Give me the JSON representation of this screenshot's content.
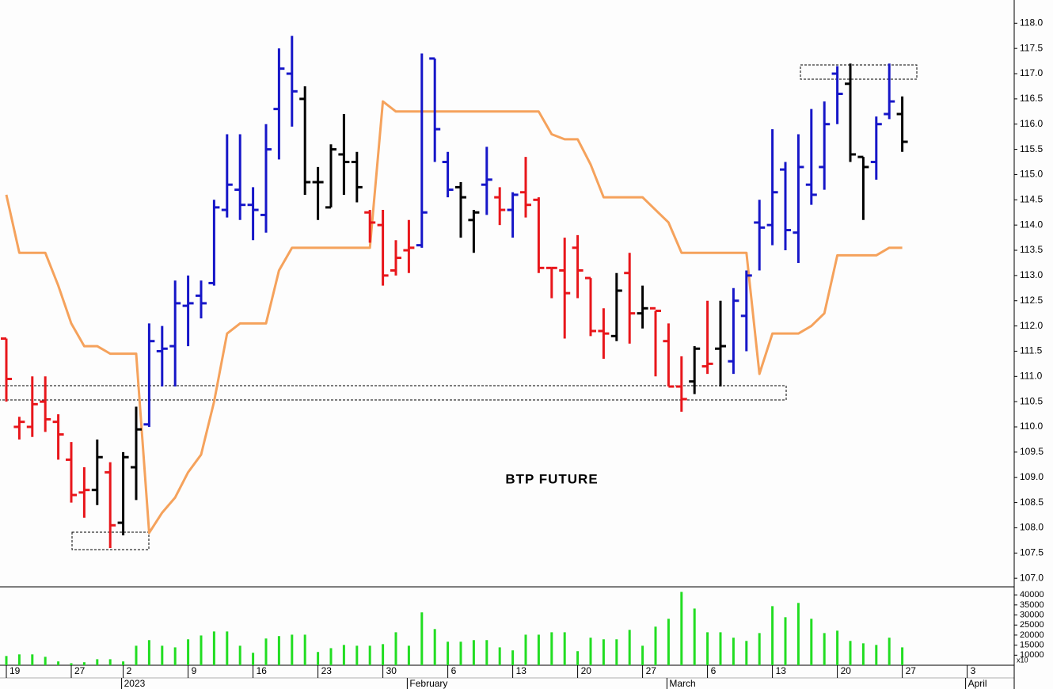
{
  "chart_data": [
    {
      "type": "ohlc",
      "title": "BTP FUTURE",
      "open": [
        111.75,
        110.0,
        110.0,
        110.5,
        110.1,
        109.35,
        108.7,
        108.75,
        109.1,
        108.1,
        109.2,
        110.05,
        111.5,
        111.6,
        112.4,
        112.6,
        112.85,
        114.3,
        114.7,
        114.4,
        114.2,
        116.3,
        117.0,
        116.5,
        114.85,
        114.35,
        115.4,
        115.25,
        114.25,
        114.0,
        113.1,
        113.5,
        113.6,
        117.3,
        115.25,
        114.75,
        114.1,
        114.8,
        114.55,
        114.3,
        114.65,
        114.5,
        113.15,
        113.1,
        113.55,
        112.95,
        111.9,
        111.8,
        113.05,
        112.25,
        112.35,
        111.7,
        110.8,
        110.9,
        111.2,
        111.55,
        111.3,
        112.2,
        114.05,
        114.0,
        115.1,
        113.85,
        114.8,
        115.15,
        117.0,
        116.8,
        115.35,
        115.25,
        116.2,
        116.2
      ],
      "high": [
        111.75,
        110.2,
        111.0,
        111.0,
        110.25,
        109.7,
        109.2,
        109.75,
        109.3,
        109.5,
        110.4,
        112.05,
        112.0,
        112.9,
        113.0,
        112.9,
        114.5,
        115.8,
        115.8,
        114.75,
        116.0,
        117.5,
        117.75,
        116.75,
        115.15,
        115.6,
        116.2,
        115.45,
        114.3,
        114.3,
        113.7,
        114.1,
        117.4,
        117.3,
        115.45,
        114.85,
        114.3,
        115.55,
        114.75,
        114.65,
        115.35,
        114.55,
        113.15,
        113.75,
        113.8,
        112.95,
        112.35,
        113.05,
        113.45,
        112.8,
        112.3,
        112.05,
        111.4,
        111.6,
        112.5,
        112.5,
        112.75,
        113.1,
        114.5,
        115.9,
        115.25,
        115.8,
        116.3,
        116.45,
        117.15,
        117.2,
        115.35,
        116.15,
        117.2,
        116.55
      ],
      "low": [
        110.5,
        109.75,
        109.8,
        109.9,
        109.35,
        108.5,
        108.2,
        108.45,
        107.6,
        107.85,
        108.55,
        110.0,
        110.8,
        110.8,
        111.6,
        112.15,
        112.8,
        114.15,
        114.1,
        113.7,
        113.85,
        115.3,
        115.95,
        114.6,
        114.1,
        114.35,
        114.6,
        114.45,
        113.65,
        112.8,
        113.0,
        113.05,
        113.55,
        115.25,
        114.55,
        113.75,
        113.45,
        114.2,
        114.0,
        113.75,
        114.15,
        113.05,
        112.55,
        111.75,
        112.55,
        111.8,
        111.35,
        111.7,
        111.65,
        111.95,
        111.0,
        110.8,
        110.3,
        110.65,
        111.05,
        110.8,
        111.05,
        111.5,
        113.1,
        113.6,
        113.5,
        113.25,
        114.4,
        114.7,
        116.0,
        115.25,
        114.1,
        114.9,
        116.1,
        115.45
      ],
      "close": [
        110.95,
        110.1,
        110.45,
        110.15,
        109.85,
        108.65,
        108.75,
        109.4,
        108.05,
        109.4,
        109.95,
        111.7,
        111.55,
        112.45,
        112.45,
        112.45,
        114.35,
        114.8,
        114.4,
        114.3,
        115.5,
        117.1,
        116.65,
        114.85,
        114.85,
        115.5,
        115.25,
        114.75,
        114.05,
        113.0,
        113.35,
        113.55,
        114.25,
        115.9,
        114.7,
        114.55,
        114.25,
        114.9,
        114.3,
        114.6,
        114.4,
        113.15,
        113.15,
        112.65,
        113.1,
        111.9,
        111.85,
        112.7,
        112.25,
        112.35,
        112.3,
        110.8,
        110.55,
        111.55,
        111.25,
        111.6,
        112.5,
        113.0,
        113.95,
        114.65,
        113.9,
        115.15,
        114.6,
        116.0,
        116.6,
        115.4,
        115.15,
        116.0,
        116.45,
        115.65
      ],
      "colors": [
        "#e8161b",
        "#e8161b",
        "#e8161b",
        "#e8161b",
        "#e8161b",
        "#e8161b",
        "#e8161b",
        "#000000",
        "#e8161b",
        "#000000",
        "#000000",
        "#1616c8",
        "#1616c8",
        "#1616c8",
        "#1616c8",
        "#1616c8",
        "#1616c8",
        "#1616c8",
        "#1616c8",
        "#1616c8",
        "#1616c8",
        "#1616c8",
        "#1616c8",
        "#000000",
        "#000000",
        "#000000",
        "#000000",
        "#000000",
        "#e8161b",
        "#e8161b",
        "#e8161b",
        "#e8161b",
        "#1616c8",
        "#1616c8",
        "#1616c8",
        "#000000",
        "#000000",
        "#1616c8",
        "#e8161b",
        "#1616c8",
        "#e8161b",
        "#e8161b",
        "#e8161b",
        "#e8161b",
        "#e8161b",
        "#e8161b",
        "#e8161b",
        "#000000",
        "#e8161b",
        "#000000",
        "#e8161b",
        "#e8161b",
        "#e8161b",
        "#000000",
        "#e8161b",
        "#000000",
        "#1616c8",
        "#1616c8",
        "#1616c8",
        "#1616c8",
        "#1616c8",
        "#1616c8",
        "#1616c8",
        "#1616c8",
        "#1616c8",
        "#000000",
        "#000000",
        "#1616c8",
        "#1616c8",
        "#000000"
      ],
      "line": {
        "color": "#f5a25c",
        "values": [
          114.6,
          113.45,
          113.45,
          113.45,
          112.8,
          112.05,
          111.6,
          111.6,
          111.45,
          111.45,
          111.45,
          107.9,
          108.3,
          108.6,
          109.1,
          109.45,
          110.5,
          111.85,
          112.05,
          112.05,
          112.05,
          113.1,
          113.55,
          113.55,
          113.55,
          113.55,
          113.55,
          113.55,
          113.55,
          116.45,
          116.25,
          116.25,
          116.25,
          116.25,
          116.25,
          116.25,
          116.25,
          116.25,
          116.25,
          116.25,
          116.25,
          116.25,
          115.8,
          115.7,
          115.7,
          115.2,
          114.55,
          114.55,
          114.55,
          114.55,
          114.3,
          114.05,
          113.45,
          113.45,
          113.45,
          113.45,
          113.45,
          113.45,
          111.05,
          111.85,
          111.85,
          111.85,
          112.0,
          112.25,
          113.4,
          113.4,
          113.4,
          113.4,
          113.55,
          113.55
        ]
      },
      "ylim": [
        106.83,
        118.46
      ],
      "yticks": [
        {
          "value": 107,
          "label": "107.0"
        },
        {
          "value": 107.5,
          "label": "107.5"
        },
        {
          "value": 108,
          "label": "108.0"
        },
        {
          "value": 108.5,
          "label": "108.5"
        },
        {
          "value": 109,
          "label": "109.0"
        },
        {
          "value": 109.5,
          "label": "109.5"
        },
        {
          "value": 110,
          "label": "110.0"
        },
        {
          "value": 110.5,
          "label": "110.5"
        },
        {
          "value": 111,
          "label": "111.0"
        },
        {
          "value": 111.5,
          "label": "111.5"
        },
        {
          "value": 112,
          "label": "112.0"
        },
        {
          "value": 112.5,
          "label": "112.5"
        },
        {
          "value": 113,
          "label": "113.0"
        },
        {
          "value": 113.5,
          "label": "113.5"
        },
        {
          "value": 114,
          "label": "114.0"
        },
        {
          "value": 114.5,
          "label": "114.5"
        },
        {
          "value": 115,
          "label": "115.0"
        },
        {
          "value": 115.5,
          "label": "115.5"
        },
        {
          "value": 116,
          "label": "116.0"
        },
        {
          "value": 116.5,
          "label": "116.5"
        },
        {
          "value": 117,
          "label": "117.0"
        },
        {
          "value": 117.5,
          "label": "117.5"
        },
        {
          "value": 118,
          "label": "118.0"
        }
      ]
    },
    {
      "type": "bar",
      "color": "#22dd22",
      "unit_label": "x10",
      "categories": [
        "19",
        null,
        null,
        null,
        null,
        "27",
        null,
        null,
        null,
        "2",
        null,
        null,
        null,
        null,
        "9",
        null,
        null,
        null,
        null,
        "16",
        null,
        null,
        null,
        null,
        "23",
        null,
        null,
        null,
        null,
        "30",
        null,
        null,
        null,
        null,
        "6",
        null,
        null,
        null,
        null,
        "13",
        null,
        null,
        null,
        null,
        "20",
        null,
        null,
        null,
        null,
        "27",
        null,
        null,
        null,
        null,
        "6",
        null,
        null,
        null,
        null,
        "13",
        null,
        null,
        null,
        null,
        "20",
        null,
        null,
        null,
        null,
        "27",
        null,
        null,
        null,
        null,
        "3",
        null,
        null,
        null
      ],
      "months": [
        null,
        null,
        null,
        null,
        null,
        null,
        null,
        null,
        null,
        "2023",
        null,
        null,
        null,
        null,
        null,
        null,
        null,
        null,
        null,
        null,
        null,
        null,
        null,
        null,
        null,
        null,
        null,
        null,
        null,
        null,
        null,
        "February",
        null,
        null,
        null,
        null,
        null,
        null,
        null,
        null,
        null,
        null,
        null,
        null,
        null,
        null,
        null,
        null,
        null,
        null,
        null,
        "March",
        null,
        null,
        null,
        null,
        null,
        null,
        null,
        null,
        null,
        null,
        null,
        null,
        null,
        null,
        null,
        null,
        null,
        null,
        null,
        null,
        null,
        null,
        "April",
        null,
        null,
        null
      ],
      "values": [
        9600,
        10400,
        10400,
        9200,
        6900,
        6000,
        6500,
        8000,
        8000,
        6900,
        14700,
        17500,
        14700,
        13900,
        17900,
        19800,
        21800,
        21800,
        14700,
        11200,
        18300,
        19500,
        20200,
        20200,
        11600,
        13500,
        15100,
        14700,
        14700,
        15500,
        21400,
        14700,
        31300,
        23000,
        16700,
        16700,
        17500,
        17500,
        13900,
        12400,
        20200,
        20200,
        21400,
        21400,
        12000,
        18700,
        17900,
        17900,
        22600,
        14700,
        24200,
        28100,
        41500,
        33200,
        21400,
        21400,
        18700,
        17100,
        21000,
        34400,
        28900,
        36000,
        28100,
        21000,
        22200,
        17100,
        15900,
        15100,
        18700,
        13900,
        null,
        null,
        null,
        null,
        null,
        null,
        null,
        null
      ],
      "ylim": [
        5000,
        44000
      ],
      "yticks": [
        10000,
        15000,
        20000,
        25000,
        30000,
        35000,
        40000
      ]
    }
  ]
}
